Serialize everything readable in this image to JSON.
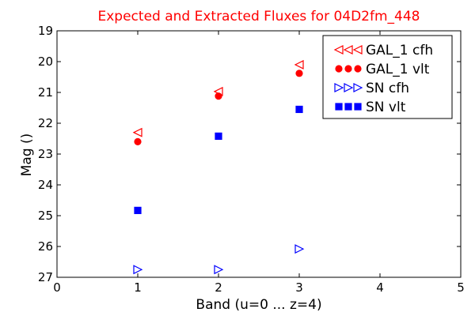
{
  "chart_data": {
    "type": "scatter",
    "title": "Expected and Extracted Fluxes for 04D2fm_448",
    "xlabel": "Band (u=0 ... z=4)",
    "ylabel": "Mag ()",
    "xlim": [
      0,
      5
    ],
    "ylim": [
      27,
      19
    ],
    "y_inverted": true,
    "x_ticks": [
      0,
      1,
      2,
      3,
      4,
      5
    ],
    "y_ticks": [
      19,
      20,
      21,
      22,
      23,
      24,
      25,
      26,
      27
    ],
    "title_color": "#ff0000",
    "legend_position": "top-right",
    "series": [
      {
        "name": "GAL_1 cfh",
        "marker": "triangle-left",
        "color": "#ff0000",
        "filled": false,
        "x": [
          1,
          2,
          3
        ],
        "y": [
          22.3,
          20.97,
          20.1
        ]
      },
      {
        "name": "GAL_1 vlt",
        "marker": "circle",
        "color": "#ff0000",
        "filled": true,
        "x": [
          1,
          2,
          3
        ],
        "y": [
          22.6,
          21.12,
          20.38
        ]
      },
      {
        "name": "SN cfh",
        "marker": "triangle-right",
        "color": "#0000ff",
        "filled": false,
        "x": [
          1,
          2,
          3
        ],
        "y": [
          26.75,
          26.75,
          26.08
        ]
      },
      {
        "name": "SN vlt",
        "marker": "square",
        "color": "#0000ff",
        "filled": true,
        "x": [
          1,
          2,
          3
        ],
        "y": [
          24.83,
          22.42,
          21.55
        ]
      }
    ]
  }
}
